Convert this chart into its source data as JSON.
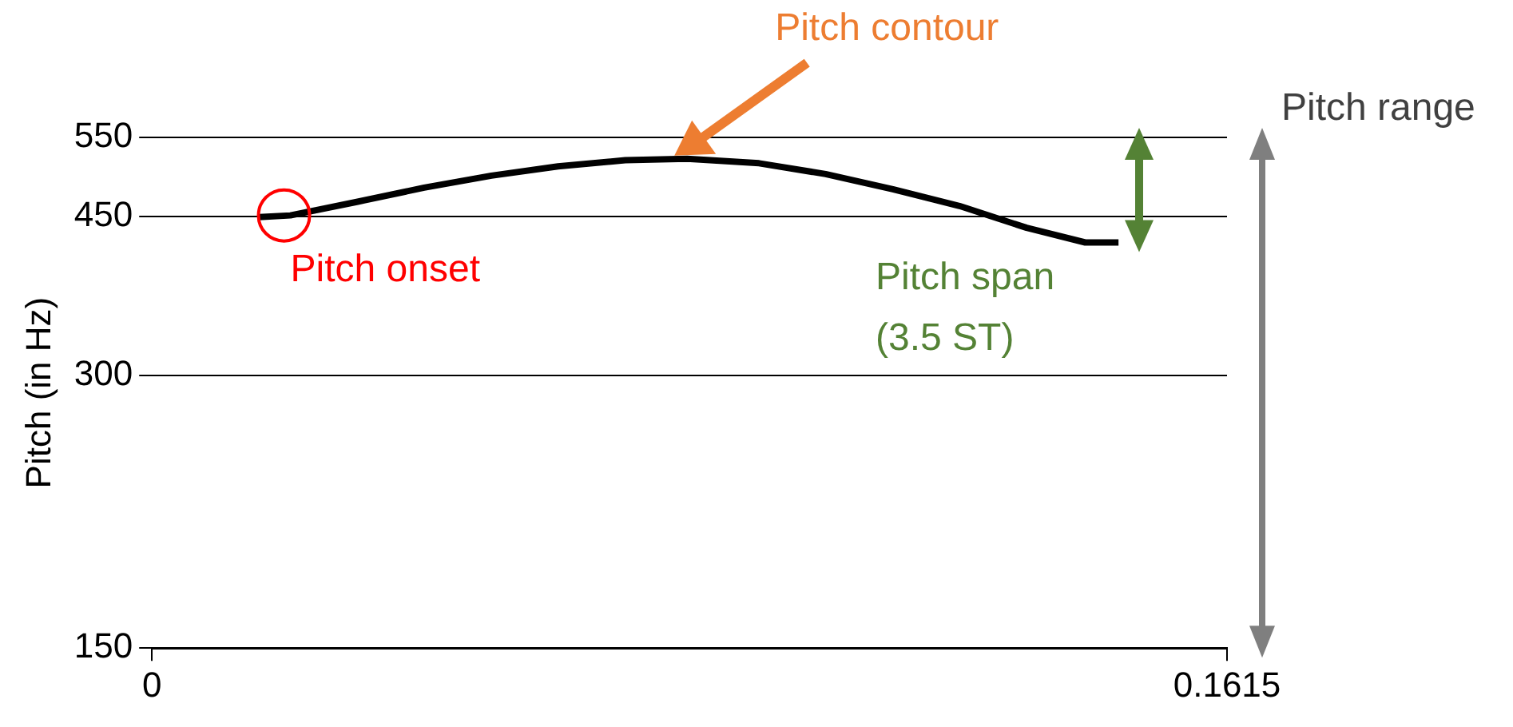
{
  "chart_data": {
    "type": "line",
    "ylabel": "Pitch (in Hz)",
    "x": [
      0.0161,
      0.0208,
      0.0309,
      0.0409,
      0.051,
      0.061,
      0.0711,
      0.0804,
      0.0912,
      0.1012,
      0.1113,
      0.1213,
      0.1314,
      0.1402,
      0.1452
    ],
    "series": [
      {
        "color": "#000000",
        "values": [
          449,
          451,
          467,
          484,
          499,
          511,
          519,
          521,
          515,
          501,
          482,
          462,
          437,
          421,
          421
        ]
      }
    ],
    "xlim": [
      0,
      0.1615
    ],
    "xticks": [
      0,
      0.1615
    ],
    "ylim": [
      150,
      550
    ],
    "yticks": [
      150,
      300,
      450,
      550
    ],
    "log": "y",
    "grid": "y",
    "legend": false,
    "marker": "none",
    "line_style": "solid",
    "annotations": [
      "Pitch contour",
      {
        "text": "Pitch onset",
        "x": 0.0208,
        "y": 451
      },
      "Pitch span (3.5 ST)",
      "Pitch range"
    ]
  }
}
